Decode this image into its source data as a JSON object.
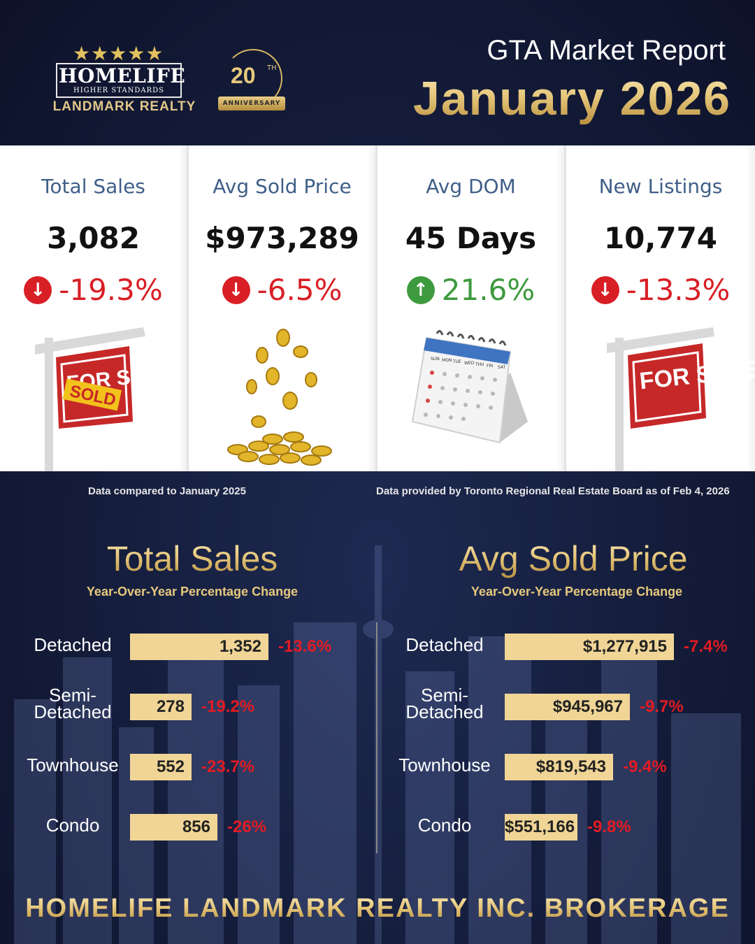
{
  "header": {
    "logo": {
      "stars": "★★★★★",
      "brand_name": "HOMELIFE",
      "brand_tagline": "HIGHER STANDARDS",
      "brand_sub": "LANDMARK REALTY",
      "anniversary_number": "20",
      "anniversary_suffix": "TH",
      "anniversary_ribbon": "ANNIVERSARY"
    },
    "title": "GTA Market Report",
    "month": "January 2026"
  },
  "cards": [
    {
      "label": "Total Sales",
      "value": "3,082",
      "change": "-19.3%",
      "direction": "down",
      "icon": "arrow-down-icon",
      "illustration": "sold-sign-icon",
      "illus_text": "FOR SALE",
      "illus_badge": "SOLD"
    },
    {
      "label": "Avg Sold Price",
      "value": "$973,289",
      "change": "-6.5%",
      "direction": "down",
      "icon": "arrow-down-icon",
      "illustration": "gold-coins-icon"
    },
    {
      "label": "Avg DOM",
      "value": "45 Days",
      "change": "21.6%",
      "direction": "up",
      "icon": "arrow-up-icon",
      "illustration": "calendar-icon",
      "illus_days": [
        "SUN",
        "MON",
        "TUE",
        "WED",
        "THU",
        "FRI",
        "SAT"
      ]
    },
    {
      "label": "New Listings",
      "value": "10,774",
      "change": "-13.3%",
      "direction": "down",
      "icon": "arrow-down-icon",
      "illustration": "for-sale-sign-icon",
      "illus_text": "FOR SALE"
    }
  ],
  "notes": {
    "compared": "Data compared to January 2025",
    "source": "Data provided by Toronto Regional Real Estate Board as of  Feb 4, 2026"
  },
  "panels": {
    "sales": {
      "title": "Total Sales",
      "subtitle": "Year-Over-Year Percentage Change",
      "rows": [
        {
          "label": "Detached",
          "value": "1,352",
          "change": "-13.6%",
          "number": 1352
        },
        {
          "label": "Semi-\nDetached",
          "value": "278",
          "change": "-19.2%",
          "number": 278
        },
        {
          "label": "Townhouse",
          "value": "552",
          "change": "-23.7%",
          "number": 552
        },
        {
          "label": "Condo",
          "value": "856",
          "change": "-26%",
          "number": 856
        }
      ]
    },
    "price": {
      "title": "Avg Sold Price",
      "subtitle": "Year-Over-Year Percentage Change",
      "rows": [
        {
          "label": "Detached",
          "value": "$1,277,915",
          "change": "-7.4%",
          "number": 1277915
        },
        {
          "label": "Semi-\nDetached",
          "value": "$945,967",
          "change": "-9.7%",
          "number": 945967
        },
        {
          "label": "Townhouse",
          "value": "$819,543",
          "change": "-9.4%",
          "number": 819543
        },
        {
          "label": "Condo",
          "value": "$551,166",
          "change": "-9.8%",
          "number": 551166
        }
      ]
    }
  },
  "footer": "HOMELIFE LANDMARK REALTY INC. BROKERAGE",
  "colors": {
    "background": "#141c3a",
    "gold": "#e6c97d",
    "bar": "#f0d596",
    "negative": "#d81f26",
    "positive": "#3e9a3e",
    "card_label": "#3f5f88"
  }
}
